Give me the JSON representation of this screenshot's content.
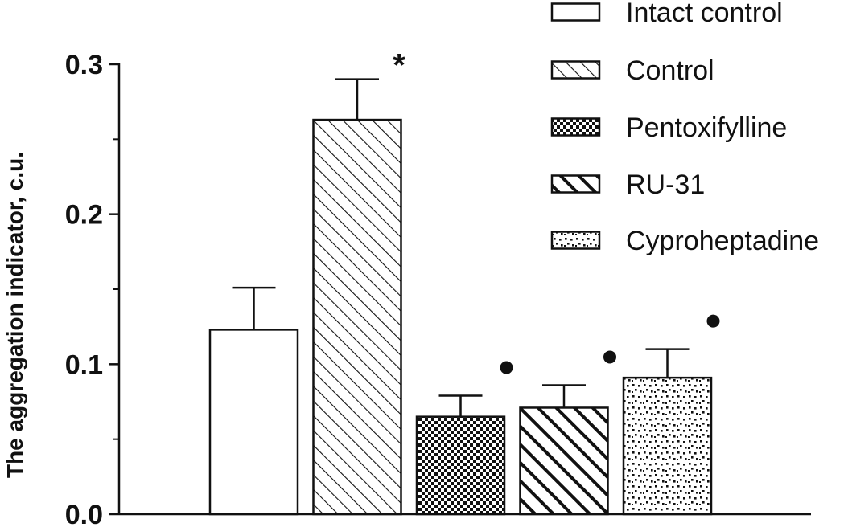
{
  "chart_data": {
    "type": "bar",
    "title": "",
    "xlabel": "",
    "ylabel": "The aggregation indicator,  c.u.",
    "ylim": [
      0,
      0.3
    ],
    "yticks": [
      "0.0",
      "0.1",
      "0.2",
      "0.3"
    ],
    "ytick_values": [
      0,
      0.1,
      0.2,
      0.3
    ],
    "grid": false,
    "legend_position": "top-right",
    "categories": [
      "Intact control",
      "Control",
      "Pentoxifylline",
      "RU-31",
      "Cyproheptadine"
    ],
    "values": [
      0.123,
      0.263,
      0.065,
      0.071,
      0.091
    ],
    "errors": [
      0.028,
      0.027,
      0.014,
      0.015,
      0.019
    ],
    "patterns": [
      "none",
      "diagonal-light",
      "checker",
      "diagonal-bold",
      "dotted"
    ],
    "annotations": [
      "",
      "*",
      "●",
      "●",
      "●"
    ],
    "colors": {
      "stroke": "#111111",
      "fill": "#ffffff"
    }
  }
}
